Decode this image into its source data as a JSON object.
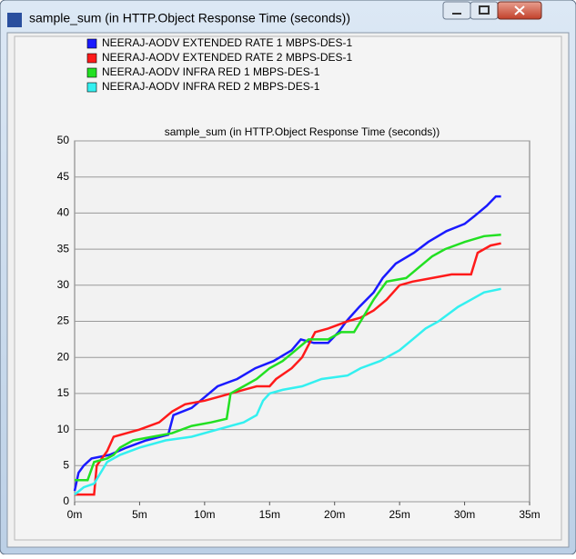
{
  "window": {
    "title": "sample_sum (in HTTP.Object Response Time (seconds))"
  },
  "chart_data": {
    "type": "line",
    "title": "sample_sum (in HTTP.Object Response Time (seconds))",
    "xlim": [
      0,
      35
    ],
    "xticks": [
      {
        "value": 0,
        "label": "0m"
      },
      {
        "value": 5,
        "label": "5m"
      },
      {
        "value": 10,
        "label": "10m"
      },
      {
        "value": 15,
        "label": "15m"
      },
      {
        "value": 20,
        "label": "20m"
      },
      {
        "value": 25,
        "label": "25m"
      },
      {
        "value": 30,
        "label": "30m"
      },
      {
        "value": 35,
        "label": "35m"
      }
    ],
    "ylim": [
      0,
      50
    ],
    "yticks": [
      0,
      5,
      10,
      15,
      20,
      25,
      30,
      35,
      40,
      45,
      50
    ],
    "grid": true,
    "series": [
      {
        "name": "NEERAJ-AODV EXTENDED RATE  1 MBPS-DES-1",
        "color": "#1a1aff",
        "x": [
          0,
          0.3,
          0.7,
          1.3,
          2.7,
          4,
          5.5,
          7.2,
          7.6,
          9,
          10,
          11,
          12.5,
          13.9,
          15.3,
          16.7,
          17.4,
          18.4,
          19.5,
          20.3,
          20.9,
          21.9,
          23,
          23.7,
          24.7,
          26.1,
          27.2,
          28.6,
          30,
          30.7,
          31.7,
          32.4,
          32.8
        ],
        "values": [
          1.5,
          4,
          5,
          6,
          6.5,
          7.5,
          8.5,
          9.3,
          12,
          13,
          14.5,
          16,
          17,
          18.5,
          19.5,
          21,
          22.5,
          22,
          22,
          23.5,
          25,
          27,
          29,
          31,
          33,
          34.5,
          36,
          37.5,
          38.5,
          39.5,
          41,
          42.3,
          42.3
        ]
      },
      {
        "name": "NEERAJ-AODV EXTENDED RATE  2 MBPS-DES-1",
        "color": "#ff1a1a",
        "x": [
          0,
          1.5,
          1.7,
          2.5,
          3,
          4,
          5,
          6.5,
          7.5,
          8.5,
          10,
          11,
          12,
          13,
          14,
          15,
          15.5,
          16.7,
          17.5,
          18.5,
          19.5,
          21,
          22,
          23,
          24,
          25,
          26,
          27.5,
          29,
          30.5,
          31,
          32,
          32.8
        ],
        "values": [
          1,
          1,
          5,
          7,
          9,
          9.5,
          10,
          11,
          12.5,
          13.5,
          14,
          14.5,
          15,
          15.5,
          16,
          16,
          17,
          18.5,
          20,
          23.5,
          24,
          25,
          25.5,
          26.5,
          28,
          30,
          30.5,
          31,
          31.5,
          31.5,
          34.5,
          35.5,
          35.8
        ]
      },
      {
        "name": "NEERAJ-AODV INFRA RED 1 MBPS-DES-1",
        "color": "#22e022",
        "x": [
          0,
          1,
          1.5,
          2.5,
          3,
          3.5,
          4.5,
          6,
          7.5,
          9,
          10.5,
          11.7,
          12,
          13,
          14,
          15,
          16,
          17,
          18,
          19.5,
          20.5,
          21.5,
          22,
          23,
          24,
          25.5,
          26.5,
          27.5,
          28.5,
          30,
          31.5,
          32.8
        ],
        "values": [
          3,
          3,
          5.5,
          6,
          6.5,
          7.5,
          8.5,
          9,
          9.5,
          10.5,
          11,
          11.5,
          15,
          16,
          17,
          18.5,
          19.5,
          21,
          22.5,
          22.5,
          23.5,
          23.5,
          25,
          28,
          30.5,
          31,
          32.5,
          34,
          35,
          36,
          36.8,
          37
        ]
      },
      {
        "name": "NEERAJ-AODV INFRA RED 2 MBPS-DES-1",
        "color": "#33f0f0",
        "x": [
          0,
          0.7,
          1.5,
          2.5,
          3.5,
          5,
          7,
          9,
          11,
          13,
          14,
          14.5,
          15,
          16,
          17.5,
          19,
          21,
          22,
          23.5,
          25,
          26,
          27,
          28,
          29.5,
          30.5,
          31.5,
          32.8
        ],
        "values": [
          1,
          2,
          2.5,
          5.5,
          6.5,
          7.5,
          8.5,
          9,
          10,
          11,
          12,
          14,
          15,
          15.5,
          16,
          17,
          17.5,
          18.5,
          19.5,
          21,
          22.5,
          24,
          25,
          27,
          28,
          29,
          29.5
        ]
      }
    ]
  }
}
